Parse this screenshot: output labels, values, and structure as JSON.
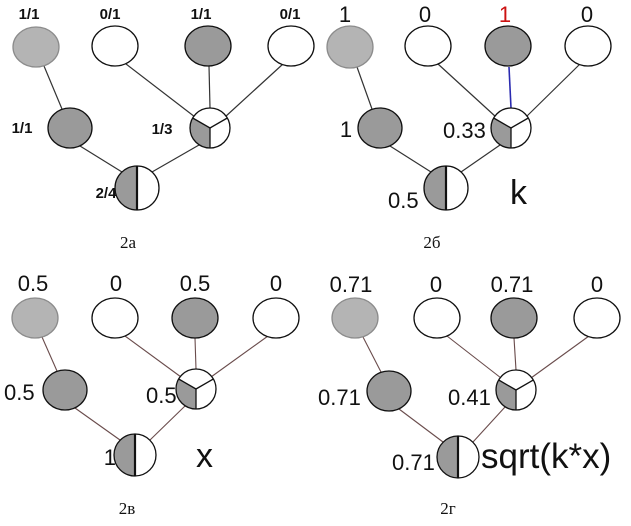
{
  "panels": [
    {
      "caption": "2а",
      "top_labels": [
        "1/1",
        "0/1",
        "1/1",
        "0/1"
      ],
      "mid_left_label": "1/1",
      "mid_split_label": "1/3",
      "bottom_label": "2/4"
    },
    {
      "caption": "2б",
      "top_labels": [
        "1",
        "0",
        "1",
        "0"
      ],
      "mid_left_label": "1",
      "mid_split_label": "0.33",
      "bottom_label": "0.5",
      "formula": "k"
    },
    {
      "caption": "2в",
      "top_labels": [
        "0.5",
        "0",
        "0.5",
        "0"
      ],
      "mid_left_label": "0.5",
      "mid_split_label": "0.5",
      "bottom_label": "1",
      "formula": "x"
    },
    {
      "caption": "2г",
      "top_labels": [
        "0.71",
        "0",
        "0.71",
        "0"
      ],
      "mid_left_label": "0.71",
      "mid_split_label": "0.41",
      "bottom_label": "0.71",
      "formula": "sqrt(k*x)"
    }
  ],
  "top_node_states": [
    "filled",
    "empty",
    "filled",
    "empty"
  ],
  "colors": {
    "node_filled": "#9a9a9a",
    "node_filled_light": "#b4b4b4",
    "node_empty": "#ffffff",
    "outline": "#111111",
    "highlight_label": "#cc1111",
    "highlight_edge": "#2a2ab0"
  }
}
